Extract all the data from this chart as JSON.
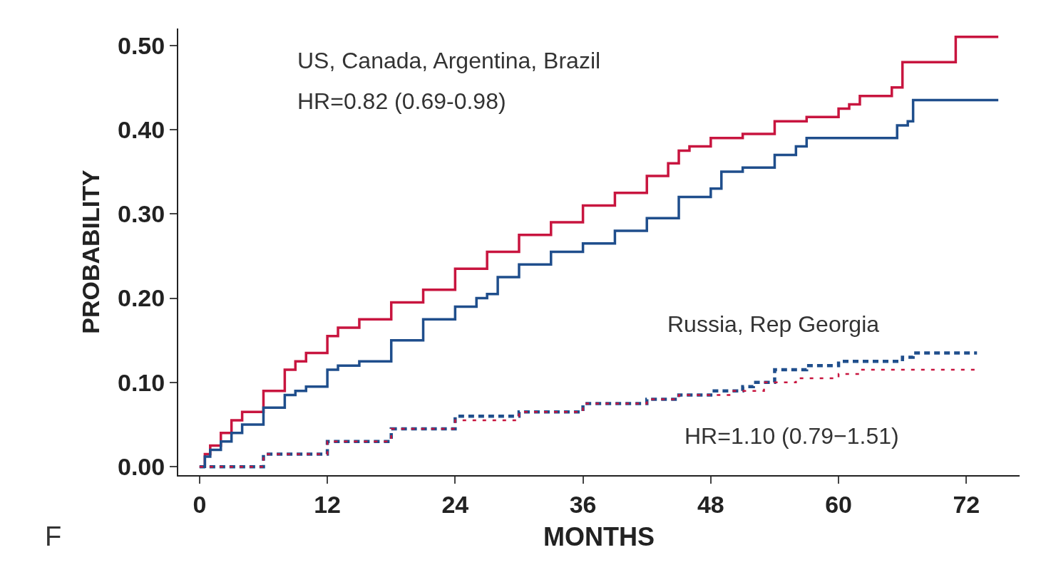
{
  "chart_data": {
    "type": "step",
    "xlabel": "MONTHS",
    "ylabel": "PROBABILITY",
    "annotations": [
      "US, Canada, Argentina, Brazil",
      "HR=0.82 (0.69-0.98)",
      "Russia, Rep Georgia",
      "HR=1.10 (0.79−1.51)",
      "F"
    ],
    "series": [
      {
        "color": "#c8153f",
        "line_style": "solid",
        "x": [
          0,
          0.5,
          1,
          2,
          3,
          4,
          6,
          8,
          9,
          10,
          12,
          13,
          15,
          18,
          21,
          24,
          27,
          30,
          33,
          36,
          39,
          42,
          44,
          45,
          46,
          48,
          51,
          54,
          57,
          60,
          61,
          62,
          65,
          66,
          68,
          71,
          75
        ],
        "values": [
          0,
          0.015,
          0.025,
          0.04,
          0.055,
          0.065,
          0.09,
          0.115,
          0.125,
          0.135,
          0.155,
          0.165,
          0.175,
          0.195,
          0.21,
          0.235,
          0.255,
          0.275,
          0.29,
          0.31,
          0.325,
          0.345,
          0.36,
          0.375,
          0.38,
          0.39,
          0.395,
          0.41,
          0.415,
          0.425,
          0.43,
          0.44,
          0.45,
          0.48,
          0.48,
          0.51,
          0.51
        ]
      },
      {
        "color": "#1f4e8c",
        "line_style": "solid",
        "x": [
          0,
          0.5,
          1,
          2,
          3,
          4,
          6,
          8,
          9,
          10,
          12,
          13,
          15,
          18,
          21,
          24,
          26,
          27,
          28,
          30,
          33,
          36,
          39,
          42,
          45,
          48,
          49,
          51,
          54,
          56,
          57,
          60,
          65.5,
          66.5,
          67,
          75
        ],
        "values": [
          0,
          0.012,
          0.02,
          0.03,
          0.04,
          0.05,
          0.07,
          0.085,
          0.09,
          0.095,
          0.115,
          0.12,
          0.125,
          0.15,
          0.175,
          0.19,
          0.2,
          0.205,
          0.225,
          0.24,
          0.255,
          0.265,
          0.28,
          0.295,
          0.32,
          0.33,
          0.35,
          0.355,
          0.37,
          0.38,
          0.39,
          0.39,
          0.405,
          0.41,
          0.435,
          0.435
        ]
      },
      {
        "color": "#1f4e8c",
        "line_style": "dashed",
        "x": [
          0,
          6,
          12,
          18,
          24,
          30,
          36,
          42,
          45,
          48,
          51,
          52,
          54,
          57,
          60,
          64,
          66,
          67,
          73
        ],
        "values": [
          0,
          0.015,
          0.03,
          0.045,
          0.06,
          0.065,
          0.075,
          0.08,
          0.085,
          0.09,
          0.095,
          0.1,
          0.115,
          0.12,
          0.125,
          0.125,
          0.13,
          0.135,
          0.135
        ]
      },
      {
        "color": "#c8153f",
        "line_style": "dashed",
        "x": [
          0,
          6,
          12,
          18,
          24,
          30,
          36,
          42,
          45,
          48,
          50,
          53,
          56,
          60,
          62,
          66,
          73
        ],
        "values": [
          0,
          0.015,
          0.03,
          0.045,
          0.055,
          0.065,
          0.075,
          0.08,
          0.085,
          0.085,
          0.09,
          0.1,
          0.105,
          0.11,
          0.115,
          0.115,
          0.115
        ]
      }
    ],
    "xlim": [
      -2,
      77
    ],
    "xticks": [
      0,
      12,
      24,
      36,
      48,
      60,
      72
    ],
    "ylim": [
      -0.01,
      0.52
    ],
    "yticks": [
      {
        "value": 0,
        "label": "0.00"
      },
      {
        "value": 0.1,
        "label": "0.10"
      },
      {
        "value": 0.2,
        "label": "0.20"
      },
      {
        "value": 0.3,
        "label": "0.30"
      },
      {
        "value": 0.4,
        "label": "0.40"
      },
      {
        "value": 0.5,
        "label": "0.50"
      }
    ]
  }
}
